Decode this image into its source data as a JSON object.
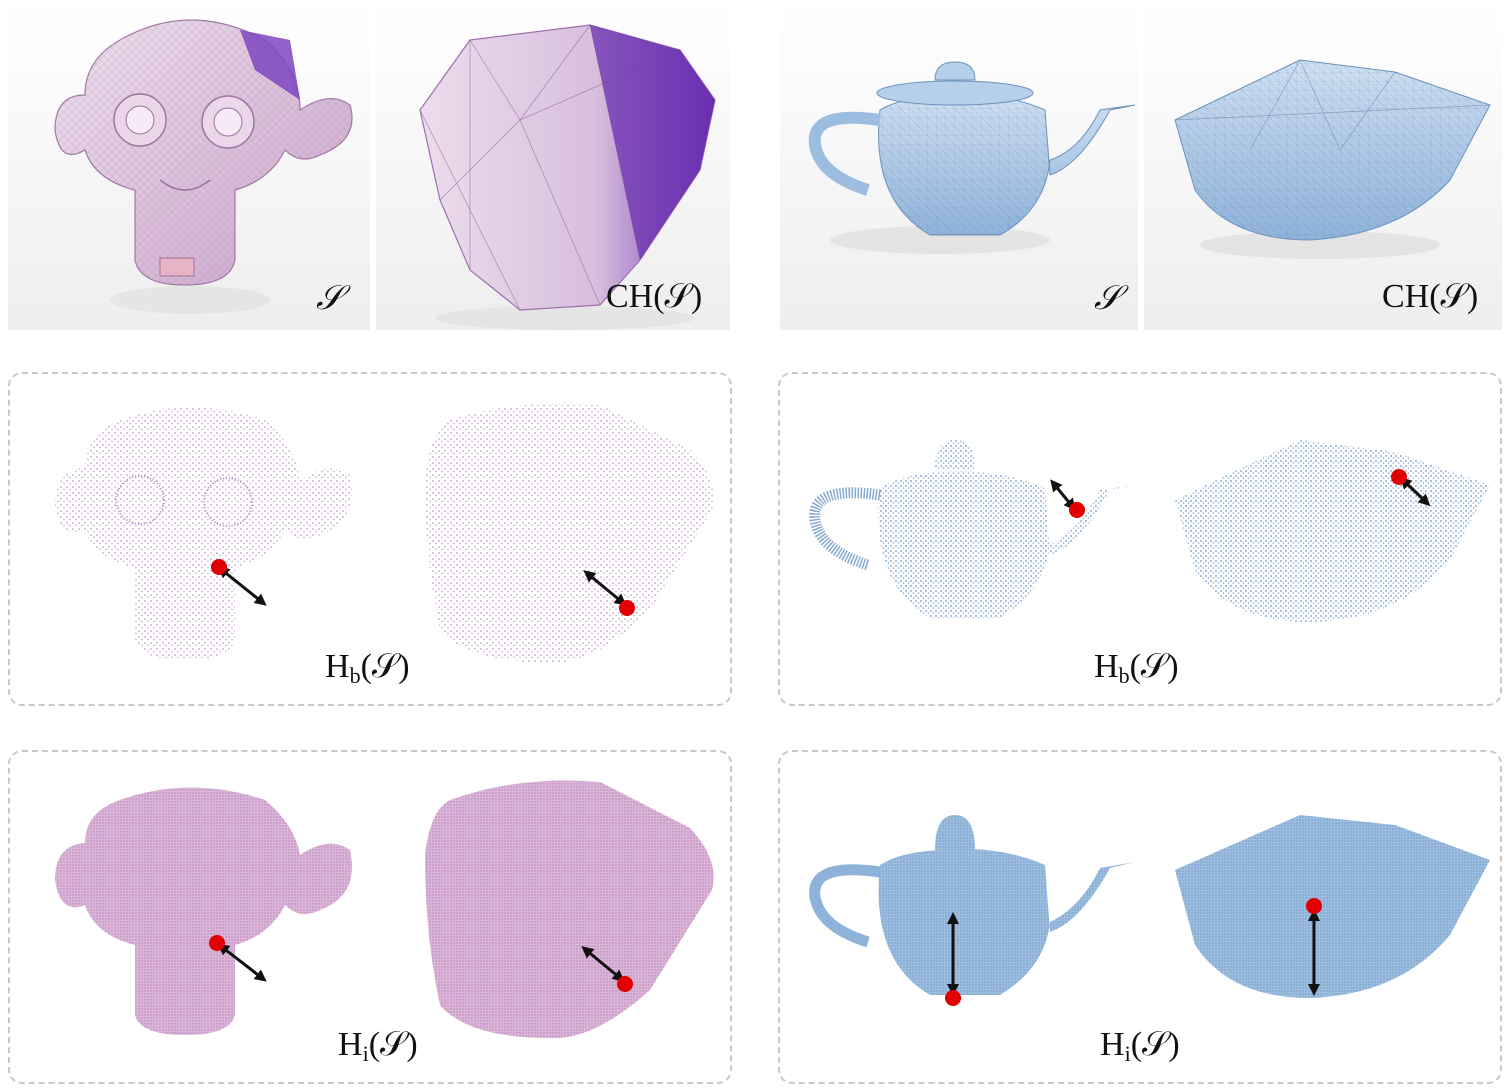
{
  "figure": {
    "rows": [
      {
        "id": "mesh",
        "labels": {
          "monkey_shape": "𝒮",
          "monkey_hull": "CH(𝒮)",
          "teapot_shape": "𝒮",
          "teapot_hull": "CH(𝒮)"
        }
      },
      {
        "id": "boundary",
        "label_prefix": "H",
        "label_sub": "b",
        "label_arg": "(𝒮)"
      },
      {
        "id": "interior",
        "label_prefix": "H",
        "label_sub": "i",
        "label_arg": "(𝒮)"
      }
    ],
    "colors": {
      "monkey": "#d9bcd9",
      "monkey_dark": "#6a2fb0",
      "teapot": "#9dbde0",
      "teapot_dark": "#5a86c0",
      "marker": "#e00000",
      "arrow": "#111111",
      "dash": "#c8c8c8"
    }
  }
}
